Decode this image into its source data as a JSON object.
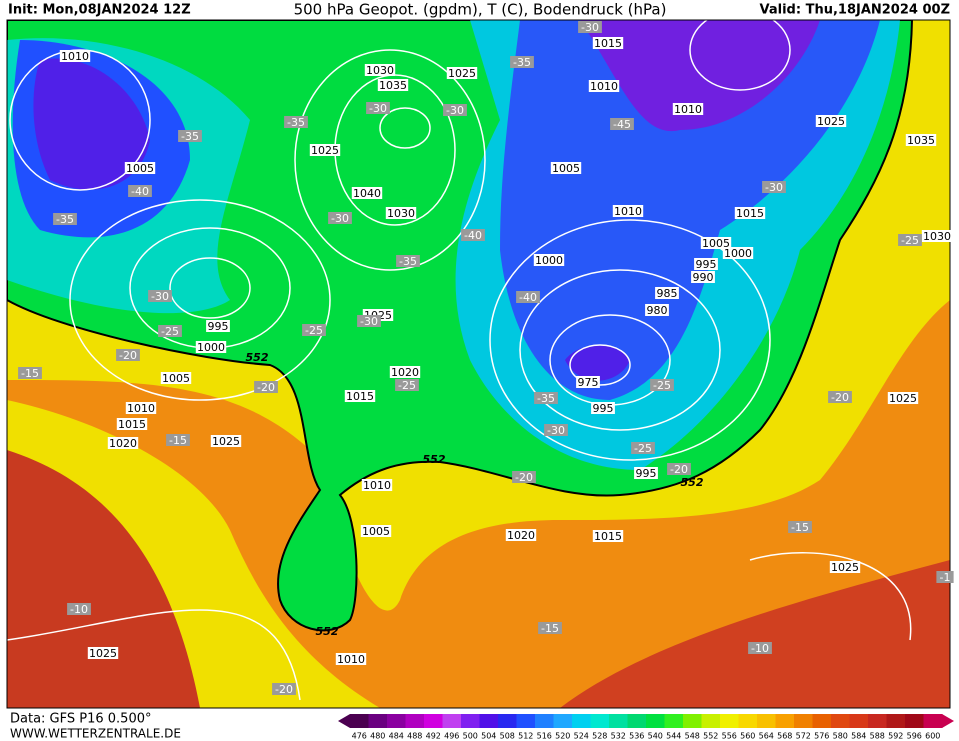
{
  "header": {
    "init": "Init: Mon,08JAN2024 12Z",
    "title": "500 hPa Geopot. (gpdm), T (C), Bodendruck (hPa)",
    "valid": "Valid: Thu,18JAN2024 00Z"
  },
  "map": {
    "isobar_labels": [
      "1010",
      "1005",
      "1030",
      "1035",
      "1025",
      "1025",
      "1040",
      "1030",
      "995",
      "1000",
      "1005",
      "1010",
      "1015",
      "1020",
      "1025",
      "1025",
      "1020",
      "1015",
      "1015",
      "1010",
      "1010",
      "1025",
      "1035",
      "1005",
      "1010",
      "1015",
      "1005",
      "1000",
      "995",
      "990",
      "985",
      "980",
      "975",
      "995",
      "1000",
      "995",
      "1030",
      "1025",
      "1010",
      "1005",
      "1020",
      "1015",
      "1025",
      "1025",
      "1010"
    ],
    "temperature_labels": [
      "-30",
      "-35",
      "-35",
      "-35",
      "-30",
      "-30",
      "-40",
      "-35",
      "-30",
      "-40",
      "-35",
      "-40",
      "-30",
      "-25",
      "-30",
      "-25",
      "-20",
      "-15",
      "-20",
      "-25",
      "-15",
      "-35",
      "-30",
      "-25",
      "-25",
      "-20",
      "-20",
      "-45",
      "-30",
      "-25",
      "-20",
      "-15",
      "-15",
      "-10",
      "-10",
      "-20",
      "-1"
    ],
    "contour_labels": [
      "552",
      "552",
      "552",
      "552"
    ]
  },
  "colorbar": {
    "labels": [
      476,
      480,
      484,
      488,
      492,
      496,
      500,
      504,
      508,
      512,
      516,
      520,
      524,
      528,
      532,
      536,
      540,
      544,
      548,
      552,
      556,
      560,
      564,
      568,
      572,
      576,
      580,
      584,
      588,
      592,
      596,
      600
    ],
    "colors": [
      "#4b0050",
      "#6a0080",
      "#8a00a0",
      "#b000c0",
      "#d000e0",
      "#c040f0",
      "#8020f0",
      "#5010e8",
      "#2828f0",
      "#2050ff",
      "#2080ff",
      "#20a8ff",
      "#00d0f0",
      "#00e8d0",
      "#00e0a0",
      "#00d870",
      "#00e040",
      "#30f020",
      "#80f000",
      "#c8f000",
      "#f0f000",
      "#f8d800",
      "#f8c000",
      "#f8a000",
      "#f08000",
      "#e86000",
      "#e04810",
      "#d83818",
      "#c82820",
      "#b01818",
      "#a00818",
      "#c80050"
    ]
  },
  "footer": {
    "data_source": "Data: GFS P16 0.500°",
    "website": "WWW.WETTERZENTRALE.DE"
  }
}
